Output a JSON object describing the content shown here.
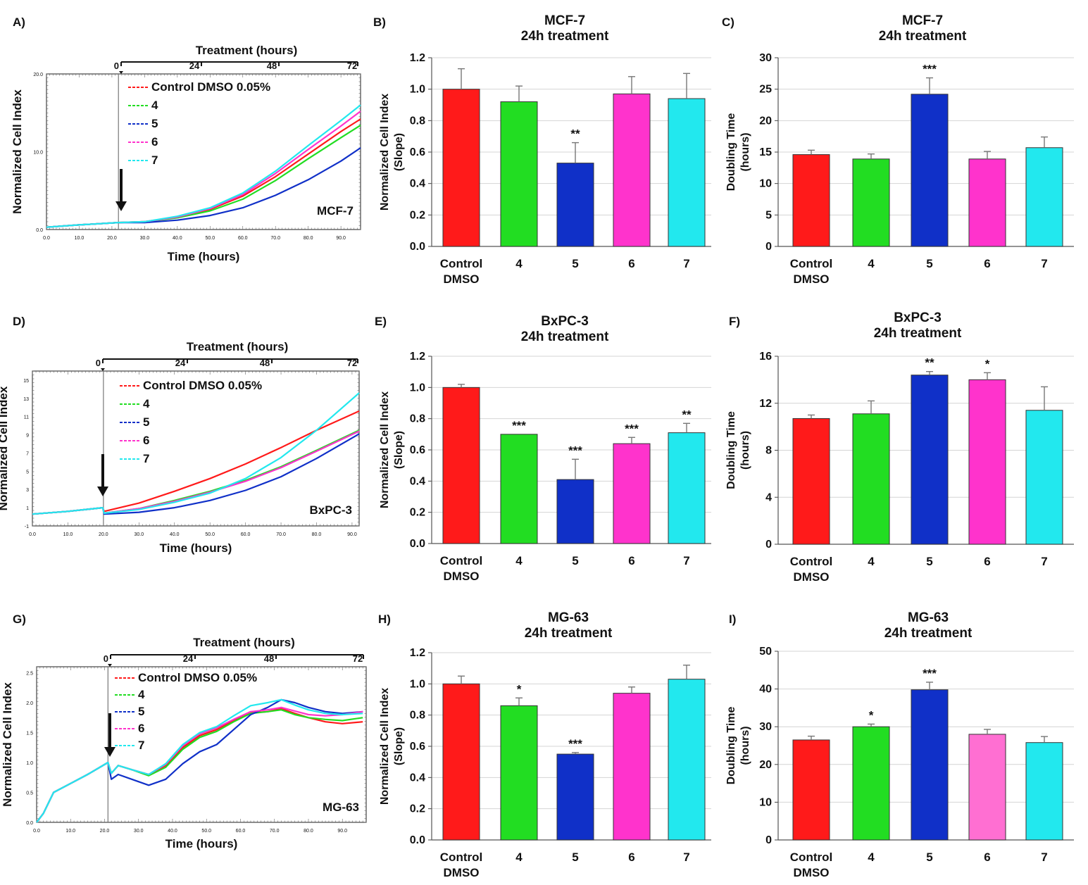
{
  "figure": {
    "legend_labels": [
      "Control DMSO 0.05%",
      "4",
      "5",
      "6",
      "7"
    ],
    "series_colors": [
      "#ff1a1a",
      "#22dd22",
      "#1030c8",
      "#ff33cc",
      "#22e8ee"
    ],
    "treatment_label": "Treatment (hours)",
    "treatment_ticks": [
      "0",
      "24",
      "48",
      "72"
    ],
    "time_label": "Time (hours)",
    "index_label": "Normalized Cell Index",
    "bar_categories": [
      "Control\nDMSO",
      "4",
      "5",
      "6",
      "7"
    ]
  },
  "chart_data": [
    {
      "panel": "A)",
      "type": "line",
      "cell_line": "MCF-7",
      "xlabel": "Time (hours)",
      "ylabel": "Normalized Cell Index",
      "xlim": [
        0,
        96
      ],
      "ylim": [
        0,
        20
      ],
      "xticks": [
        "0.0",
        "10.0",
        "20.0",
        "30.0",
        "40.0",
        "50.0",
        "60.0",
        "70.0",
        "80.0",
        "90.0"
      ],
      "yticks": [
        "0.0",
        "10.0",
        "20.0"
      ],
      "treatment_start_hours": 22,
      "series": [
        {
          "name": "Control DMSO 0.05%",
          "x": [
            0,
            10,
            22,
            30,
            40,
            50,
            60,
            70,
            80,
            90,
            96
          ],
          "y": [
            0.3,
            0.6,
            0.9,
            1.0,
            1.6,
            2.6,
            4.3,
            6.8,
            9.7,
            12.6,
            14.2
          ]
        },
        {
          "name": "4",
          "x": [
            0,
            10,
            22,
            30,
            40,
            50,
            60,
            70,
            80,
            90,
            96
          ],
          "y": [
            0.3,
            0.6,
            0.9,
            1.0,
            1.5,
            2.4,
            3.9,
            6.3,
            9.1,
            11.8,
            13.4
          ]
        },
        {
          "name": "5",
          "x": [
            0,
            10,
            22,
            30,
            40,
            50,
            60,
            70,
            80,
            90,
            96
          ],
          "y": [
            0.3,
            0.6,
            0.9,
            0.9,
            1.2,
            1.8,
            2.8,
            4.4,
            6.4,
            8.8,
            10.5
          ]
        },
        {
          "name": "6",
          "x": [
            0,
            10,
            22,
            30,
            40,
            50,
            60,
            70,
            80,
            90,
            96
          ],
          "y": [
            0.3,
            0.6,
            0.9,
            1.0,
            1.6,
            2.7,
            4.5,
            7.2,
            10.3,
            13.3,
            15.2
          ]
        },
        {
          "name": "7",
          "x": [
            0,
            10,
            22,
            30,
            40,
            50,
            60,
            70,
            80,
            90,
            96
          ],
          "y": [
            0.3,
            0.6,
            0.9,
            1.0,
            1.7,
            2.8,
            4.7,
            7.5,
            10.8,
            14.0,
            16.0
          ]
        }
      ]
    },
    {
      "panel": "B)",
      "type": "bar",
      "title": "MCF-7\n24h treatment",
      "ylabel": "Normalized Cell Index\n(Slope)",
      "ylim": [
        0,
        1.2
      ],
      "yticks": [
        "0.0",
        "0.2",
        "0.4",
        "0.6",
        "0.8",
        "1.0",
        "1.2"
      ],
      "values": [
        1.0,
        0.92,
        0.53,
        0.97,
        0.94
      ],
      "errors": [
        0.13,
        0.1,
        0.13,
        0.11,
        0.16
      ],
      "significance": [
        "",
        "",
        "**",
        "",
        ""
      ]
    },
    {
      "panel": "C)",
      "type": "bar",
      "title": "MCF-7\n24h treatment",
      "ylabel": "Doubling Time\n(hours)",
      "ylim": [
        0,
        30
      ],
      "yticks": [
        "0",
        "5",
        "10",
        "15",
        "20",
        "25",
        "30"
      ],
      "values": [
        14.6,
        13.9,
        24.2,
        13.9,
        15.7
      ],
      "errors": [
        0.7,
        0.8,
        2.6,
        1.2,
        1.7
      ],
      "significance": [
        "",
        "",
        "***",
        "",
        ""
      ]
    },
    {
      "panel": "D)",
      "type": "line",
      "cell_line": "BxPC-3",
      "xlabel": "Time (hours)",
      "ylabel": "Normalized Cell Index",
      "xlim": [
        0,
        92
      ],
      "ylim": [
        -1,
        16
      ],
      "xticks": [
        "0.0",
        "10.0",
        "20.0",
        "30.0",
        "40.0",
        "50.0",
        "60.0",
        "70.0",
        "80.0",
        "90.0"
      ],
      "yticks": [
        "-1",
        "1",
        "3",
        "5",
        "7",
        "9",
        "11",
        "13",
        "15"
      ],
      "treatment_start_hours": 20,
      "series": [
        {
          "name": "Control DMSO 0.05%",
          "x": [
            0,
            10,
            19.8,
            20.2,
            30,
            40,
            50,
            60,
            70,
            80,
            92
          ],
          "y": [
            0.3,
            0.6,
            1.0,
            0.6,
            1.5,
            2.8,
            4.2,
            5.8,
            7.6,
            9.5,
            11.6
          ]
        },
        {
          "name": "4",
          "x": [
            0,
            10,
            19.8,
            20.2,
            30,
            40,
            50,
            60,
            70,
            80,
            92
          ],
          "y": [
            0.3,
            0.6,
            1.0,
            0.4,
            0.9,
            1.8,
            2.8,
            4.0,
            5.5,
            7.3,
            9.5
          ]
        },
        {
          "name": "5",
          "x": [
            0,
            10,
            19.8,
            20.2,
            30,
            40,
            50,
            60,
            70,
            80,
            92
          ],
          "y": [
            0.3,
            0.6,
            1.0,
            0.3,
            0.5,
            1.0,
            1.8,
            2.9,
            4.4,
            6.4,
            9.1
          ]
        },
        {
          "name": "6",
          "x": [
            0,
            10,
            19.8,
            20.2,
            30,
            40,
            50,
            60,
            70,
            80,
            92
          ],
          "y": [
            0.3,
            0.6,
            1.0,
            0.4,
            0.9,
            1.7,
            2.7,
            3.9,
            5.4,
            7.2,
            9.4
          ]
        },
        {
          "name": "7",
          "x": [
            0,
            10,
            19.8,
            20.2,
            30,
            40,
            50,
            60,
            70,
            80,
            92
          ],
          "y": [
            0.3,
            0.6,
            1.0,
            0.4,
            0.8,
            1.6,
            2.6,
            4.2,
            6.5,
            9.5,
            13.6
          ]
        }
      ]
    },
    {
      "panel": "E)",
      "type": "bar",
      "title": "BxPC-3\n24h treatment",
      "ylabel": "Normalized Cell Index\n(Slope)",
      "ylim": [
        0,
        1.2
      ],
      "yticks": [
        "0.0",
        "0.2",
        "0.4",
        "0.6",
        "0.8",
        "1.0",
        "1.2"
      ],
      "values": [
        1.0,
        0.7,
        0.41,
        0.64,
        0.71
      ],
      "errors": [
        0.02,
        0.0,
        0.13,
        0.04,
        0.06
      ],
      "significance": [
        "",
        "***",
        "***",
        "***",
        "**"
      ]
    },
    {
      "panel": "F)",
      "type": "bar",
      "title": "BxPC-3\n24h treatment",
      "ylabel": "Doubling Time\n(hours)",
      "ylim": [
        0,
        16
      ],
      "yticks": [
        "0",
        "4",
        "8",
        "12",
        "16"
      ],
      "values": [
        10.7,
        11.1,
        14.4,
        14.0,
        11.4
      ],
      "errors": [
        0.3,
        1.1,
        0.3,
        0.6,
        2.0
      ],
      "significance": [
        "",
        "",
        "**",
        "*",
        ""
      ]
    },
    {
      "panel": "G)",
      "type": "line",
      "cell_line": "MG-63",
      "xlabel": "Time (hours)",
      "ylabel": "Normalized Cell Index",
      "xlim": [
        0,
        97
      ],
      "ylim": [
        0,
        2.6
      ],
      "xticks": [
        "0.0",
        "10.0",
        "20.0",
        "30.0",
        "40.0",
        "50.0",
        "60.0",
        "70.0",
        "80.0",
        "90.0"
      ],
      "yticks": [
        "0.0",
        "0.5",
        "1.0",
        "1.5",
        "2.0",
        "2.5"
      ],
      "treatment_start_hours": 21,
      "series": [
        {
          "name": "Control DMSO 0.05%",
          "x": [
            0,
            2,
            5,
            10,
            15,
            21,
            22,
            24,
            28,
            33,
            38,
            43,
            48,
            53,
            58,
            63,
            68,
            72,
            76,
            80,
            85,
            90,
            96
          ],
          "y": [
            0,
            0.15,
            0.5,
            0.65,
            0.8,
            1.0,
            0.82,
            0.95,
            0.88,
            0.8,
            0.95,
            1.25,
            1.45,
            1.55,
            1.7,
            1.83,
            1.85,
            1.9,
            1.82,
            1.75,
            1.68,
            1.65,
            1.68
          ]
        },
        {
          "name": "4",
          "x": [
            0,
            2,
            5,
            10,
            15,
            21,
            22,
            24,
            28,
            33,
            38,
            43,
            48,
            53,
            58,
            63,
            68,
            72,
            76,
            80,
            85,
            90,
            96
          ],
          "y": [
            0,
            0.15,
            0.5,
            0.65,
            0.8,
            1.0,
            0.82,
            0.95,
            0.88,
            0.78,
            0.92,
            1.22,
            1.42,
            1.52,
            1.68,
            1.82,
            1.85,
            1.88,
            1.8,
            1.75,
            1.72,
            1.7,
            1.75
          ]
        },
        {
          "name": "5",
          "x": [
            0,
            2,
            5,
            10,
            15,
            21,
            22,
            24,
            28,
            33,
            38,
            43,
            48,
            53,
            58,
            63,
            68,
            72,
            76,
            80,
            85,
            90,
            96
          ],
          "y": [
            0,
            0.15,
            0.5,
            0.65,
            0.8,
            1.0,
            0.72,
            0.8,
            0.72,
            0.62,
            0.72,
            0.98,
            1.18,
            1.3,
            1.55,
            1.8,
            1.92,
            2.05,
            2.0,
            1.92,
            1.85,
            1.82,
            1.85
          ]
        },
        {
          "name": "6",
          "x": [
            0,
            2,
            5,
            10,
            15,
            21,
            22,
            24,
            28,
            33,
            38,
            43,
            48,
            53,
            58,
            63,
            68,
            72,
            76,
            80,
            85,
            90,
            96
          ],
          "y": [
            0,
            0.15,
            0.5,
            0.65,
            0.8,
            1.0,
            0.82,
            0.95,
            0.88,
            0.8,
            0.97,
            1.28,
            1.48,
            1.58,
            1.72,
            1.85,
            1.88,
            1.92,
            1.86,
            1.8,
            1.78,
            1.8,
            1.85
          ]
        },
        {
          "name": "7",
          "x": [
            0,
            2,
            5,
            10,
            15,
            21,
            22,
            24,
            28,
            33,
            38,
            43,
            48,
            53,
            58,
            63,
            68,
            72,
            76,
            80,
            85,
            90,
            96
          ],
          "y": [
            0,
            0.15,
            0.5,
            0.65,
            0.8,
            1.0,
            0.82,
            0.95,
            0.88,
            0.8,
            0.98,
            1.3,
            1.5,
            1.6,
            1.78,
            1.95,
            2.0,
            2.05,
            1.96,
            1.88,
            1.82,
            1.8,
            1.82
          ]
        }
      ]
    },
    {
      "panel": "H)",
      "type": "bar",
      "title": "MG-63\n24h treatment",
      "ylabel": "Normalized Cell Index\n(Slope)",
      "ylim": [
        0,
        1.2
      ],
      "yticks": [
        "0.0",
        "0.2",
        "0.4",
        "0.6",
        "0.8",
        "1.0",
        "1.2"
      ],
      "values": [
        1.0,
        0.86,
        0.55,
        0.94,
        1.03
      ],
      "errors": [
        0.05,
        0.05,
        0.01,
        0.04,
        0.09
      ],
      "significance": [
        "",
        "*",
        "***",
        "",
        ""
      ]
    },
    {
      "panel": "I)",
      "type": "bar",
      "title": "MG-63\n24h treatment",
      "ylabel": "Doubling Time\n(hours)",
      "ylim": [
        0,
        50
      ],
      "yticks": [
        "0",
        "10",
        "20",
        "30",
        "40",
        "50"
      ],
      "values": [
        26.5,
        30.0,
        39.8,
        28.0,
        25.8
      ],
      "errors": [
        1.0,
        0.7,
        2.0,
        1.3,
        1.6
      ],
      "significance": [
        "",
        "*",
        "***",
        "",
        ""
      ]
    }
  ]
}
